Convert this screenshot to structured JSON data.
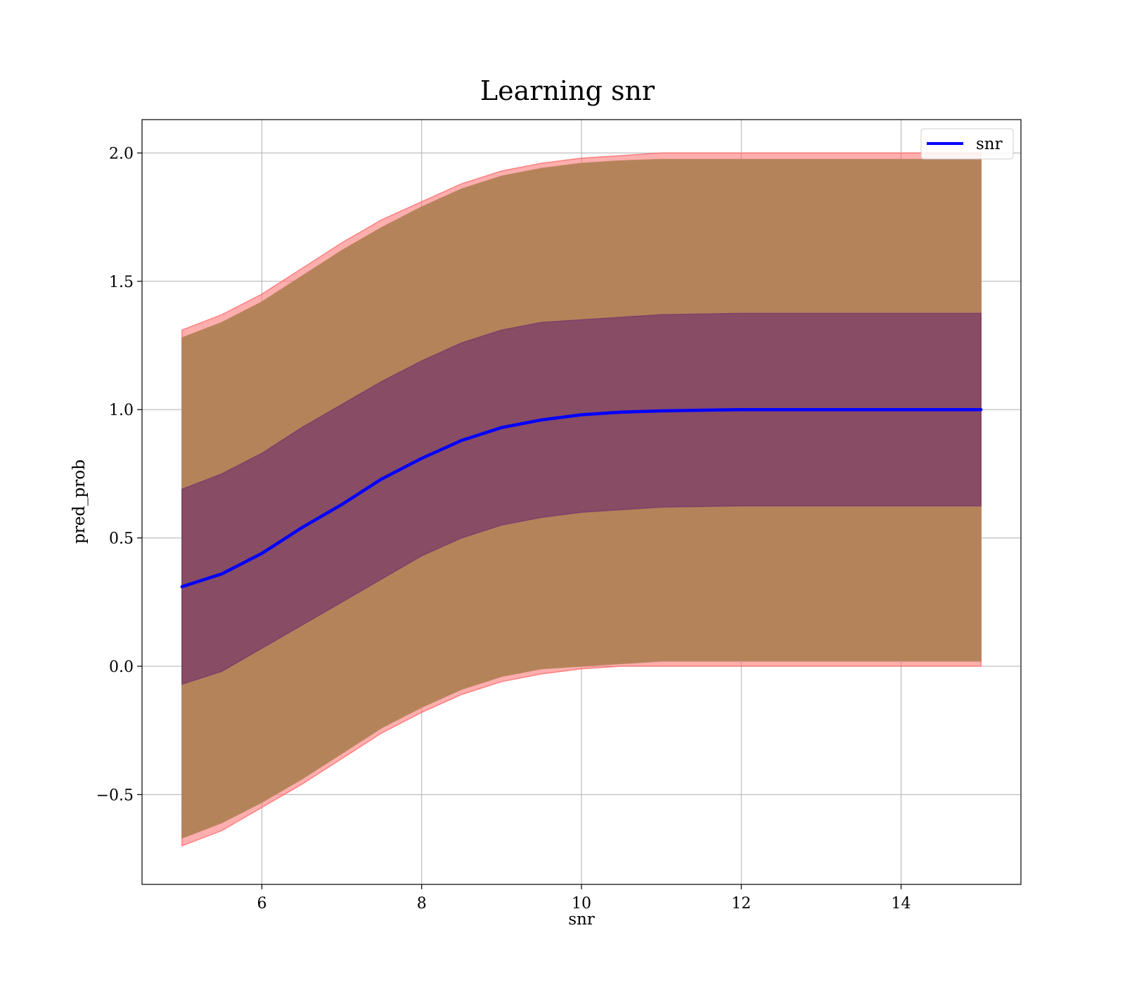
{
  "chart_data": {
    "type": "line",
    "title": "Learning snr",
    "xlabel": "snr",
    "ylabel": "pred_prob",
    "xlim": [
      4.5,
      15.5
    ],
    "ylim": [
      -0.85,
      2.13
    ],
    "xticks": [
      6,
      8,
      10,
      12,
      14
    ],
    "xtick_labels": [
      "6",
      "8",
      "10",
      "12",
      "14"
    ],
    "yticks": [
      -0.5,
      0.0,
      0.5,
      1.0,
      1.5,
      2.0
    ],
    "ytick_labels": [
      "−0.5",
      "0.0",
      "0.5",
      "1.0",
      "1.5",
      "2.0"
    ],
    "grid": true,
    "legend": {
      "position": "top-right",
      "entries": [
        "snr"
      ]
    },
    "colors": {
      "line": "#0000ff",
      "outer_band": "#ff6b6b",
      "middle_band": "#b5835a",
      "inner_band": "#7a3a6a",
      "grid": "#b0b0b0"
    },
    "series": [
      {
        "name": "snr",
        "x": [
          5.0,
          5.5,
          6.0,
          6.5,
          7.0,
          7.5,
          8.0,
          8.5,
          9.0,
          9.5,
          10.0,
          10.5,
          11.0,
          12.0,
          13.0,
          14.0,
          15.0
        ],
        "y": [
          0.31,
          0.36,
          0.44,
          0.54,
          0.63,
          0.73,
          0.81,
          0.88,
          0.93,
          0.96,
          0.98,
          0.99,
          0.995,
          1.0,
          1.0,
          1.0,
          1.0
        ]
      }
    ],
    "bands": [
      {
        "layer": "outer",
        "x": [
          5.0,
          5.5,
          6.0,
          6.5,
          7.0,
          7.5,
          8.0,
          8.5,
          9.0,
          9.5,
          10.0,
          10.5,
          11.0,
          12.0,
          13.0,
          14.0,
          15.0
        ],
        "lower": [
          -0.7,
          -0.64,
          -0.55,
          -0.46,
          -0.36,
          -0.26,
          -0.18,
          -0.11,
          -0.06,
          -0.03,
          -0.01,
          0.0,
          0.0,
          0.0,
          0.0,
          0.0,
          0.0
        ],
        "upper": [
          1.31,
          1.37,
          1.45,
          1.55,
          1.65,
          1.74,
          1.81,
          1.88,
          1.93,
          1.96,
          1.98,
          1.99,
          2.0,
          2.0,
          2.0,
          2.0,
          2.0
        ]
      },
      {
        "layer": "middle",
        "x": [
          5.0,
          5.5,
          6.0,
          6.5,
          7.0,
          7.5,
          8.0,
          8.5,
          9.0,
          9.5,
          10.0,
          10.5,
          11.0,
          12.0,
          13.0,
          14.0,
          15.0
        ],
        "lower": [
          -0.67,
          -0.61,
          -0.53,
          -0.44,
          -0.34,
          -0.24,
          -0.16,
          -0.09,
          -0.04,
          -0.01,
          0.0,
          0.01,
          0.02,
          0.02,
          0.02,
          0.02,
          0.02
        ],
        "upper": [
          1.28,
          1.34,
          1.42,
          1.52,
          1.62,
          1.71,
          1.79,
          1.86,
          1.91,
          1.94,
          1.96,
          1.97,
          1.975,
          1.975,
          1.975,
          1.975,
          1.975
        ]
      },
      {
        "layer": "inner",
        "x": [
          5.0,
          5.5,
          6.0,
          6.5,
          7.0,
          7.5,
          8.0,
          8.5,
          9.0,
          9.5,
          10.0,
          10.5,
          11.0,
          12.0,
          13.0,
          14.0,
          15.0
        ],
        "lower": [
          -0.07,
          -0.02,
          0.07,
          0.16,
          0.25,
          0.34,
          0.43,
          0.5,
          0.55,
          0.58,
          0.6,
          0.61,
          0.62,
          0.625,
          0.625,
          0.625,
          0.625
        ],
        "upper": [
          0.69,
          0.75,
          0.83,
          0.93,
          1.02,
          1.11,
          1.19,
          1.26,
          1.31,
          1.34,
          1.35,
          1.36,
          1.37,
          1.375,
          1.375,
          1.375,
          1.375
        ]
      }
    ]
  }
}
